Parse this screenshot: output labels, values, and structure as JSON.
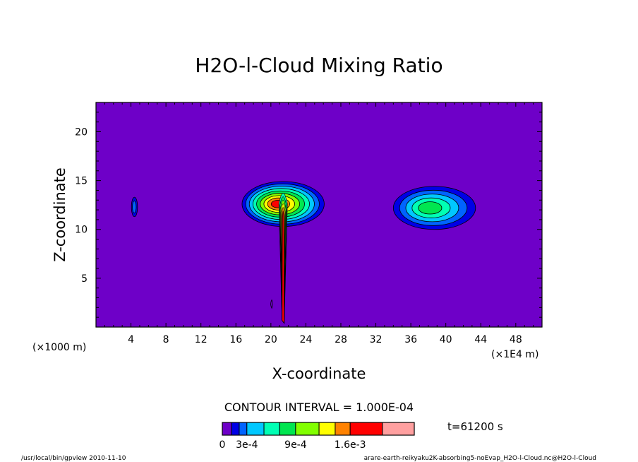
{
  "chart_data": {
    "type": "heatmap",
    "title": "H2O-l-Cloud Mixing Ratio",
    "xlabel": "X-coordinate",
    "ylabel": "Z-coordinate",
    "x_unit_left": "(×1000 m)",
    "x_unit_right": "(×1E4 m)",
    "xlim": [
      0,
      51
    ],
    "ylim": [
      0,
      23
    ],
    "x_ticks": [
      4,
      8,
      12,
      16,
      20,
      24,
      28,
      32,
      36,
      40,
      44,
      48
    ],
    "y_ticks": [
      5,
      10,
      15,
      20
    ],
    "contour_interval_text": "CONTOUR INTERVAL = 1.000E-04",
    "time_text": "t=61200 s",
    "levels": [
      0,
      0.0001,
      0.0002,
      0.0003,
      0.0004,
      0.0005,
      0.0006,
      0.0007,
      0.0008,
      0.0009,
      0.0012,
      0.0016,
      0.002
    ],
    "colorbar_labels": [
      "0",
      "3e-4",
      "9e-4",
      "1.6e-3"
    ],
    "colorbar_colors": [
      "#6e00c8",
      "#0000e6",
      "#0064ff",
      "#00c8ff",
      "#00ffb4",
      "#00e650",
      "#82ff00",
      "#ffff00",
      "#ff8200",
      "#ff0000",
      "#ffa0a0"
    ],
    "background_color": "#6e00c8",
    "clouds": [
      {
        "name": "isolated patch",
        "x_center": 4.4,
        "z_center": 12.3,
        "x_halfwidth": 0.35,
        "z_halfwidth": 1.0,
        "max_level": 2
      },
      {
        "name": "central anvil",
        "x_center": 21.4,
        "z_center": 12.6,
        "x_halfwidth": 4.7,
        "z_halfwidth": 2.3,
        "max_level": 9
      },
      {
        "name": "right anvil",
        "x_center": 38.7,
        "z_center": 12.2,
        "x_halfwidth": 4.7,
        "z_halfwidth": 2.2,
        "max_level": 5
      }
    ],
    "grid": false
  },
  "footer": {
    "left": "/usr/local/bin/gpview  2010-11-10",
    "right": "arare-earth-reikyaku2K-absorbing5-noEvap_H2O-l-Cloud.nc@H2O-l-Cloud"
  }
}
